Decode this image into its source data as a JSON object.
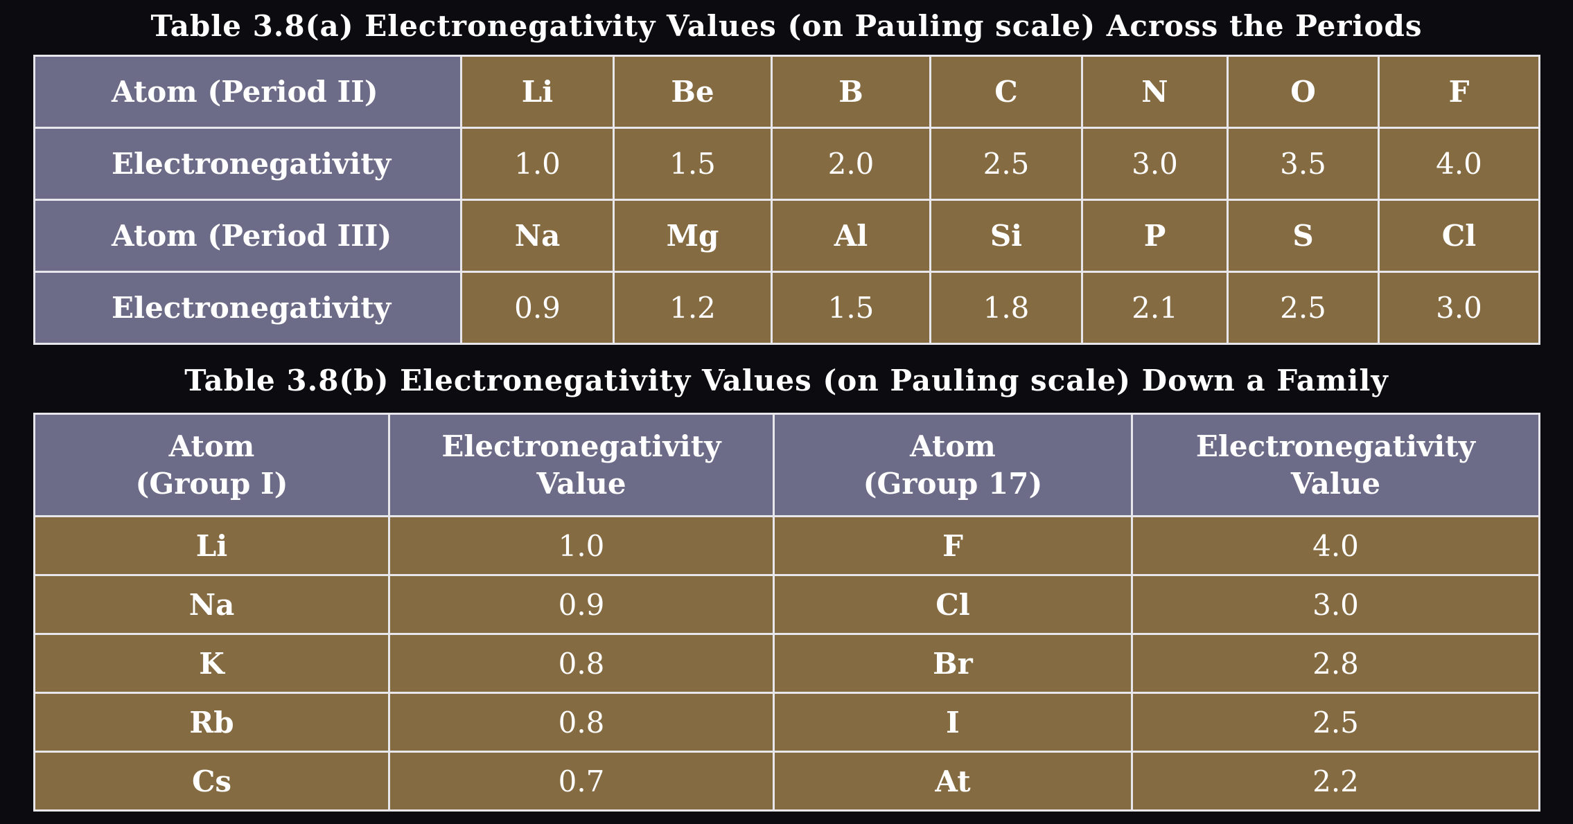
{
  "table_a": {
    "caption": "Table 3.8(a)  Electronegativity Values (on Pauling scale) Across the Periods",
    "rows": [
      {
        "label": "Atom (Period II)",
        "kind": "sym",
        "cells": [
          "Li",
          "Be",
          "B",
          "C",
          "N",
          "O",
          "F"
        ]
      },
      {
        "label": "Electronegativity",
        "kind": "val",
        "cells": [
          "1.0",
          "1.5",
          "2.0",
          "2.5",
          "3.0",
          "3.5",
          "4.0"
        ]
      },
      {
        "label": "Atom (Period III)",
        "kind": "sym",
        "cells": [
          "Na",
          "Mg",
          "Al",
          "Si",
          "P",
          "S",
          "Cl"
        ]
      },
      {
        "label": "Electronegativity",
        "kind": "val",
        "cells": [
          "0.9",
          "1.2",
          "1.5",
          "1.8",
          "2.1",
          "2.5",
          "3.0"
        ]
      }
    ]
  },
  "table_b": {
    "caption": "Table 3.8(b)  Electronegativity Values (on Pauling scale) Down a Family",
    "headers": [
      {
        "line1": "Atom",
        "line2": "(Group I)"
      },
      {
        "line1": "Electronegativity",
        "line2": "Value"
      },
      {
        "line1": "Atom",
        "line2": "(Group 17)"
      },
      {
        "line1": "Electronegativity",
        "line2": "Value"
      }
    ],
    "rows": [
      [
        "Li",
        "1.0",
        "F",
        "4.0"
      ],
      [
        "Na",
        "0.9",
        "Cl",
        "3.0"
      ],
      [
        "K",
        "0.8",
        "Br",
        "2.8"
      ],
      [
        "Rb",
        "0.8",
        "I",
        "2.5"
      ],
      [
        "Cs",
        "0.7",
        "At",
        "2.2"
      ]
    ]
  },
  "colors": {
    "background": "#0b0b10",
    "header_fill": "#6d6c88",
    "body_fill": "#856b41",
    "border": "#e8e8ec",
    "text": "#ffffff"
  }
}
